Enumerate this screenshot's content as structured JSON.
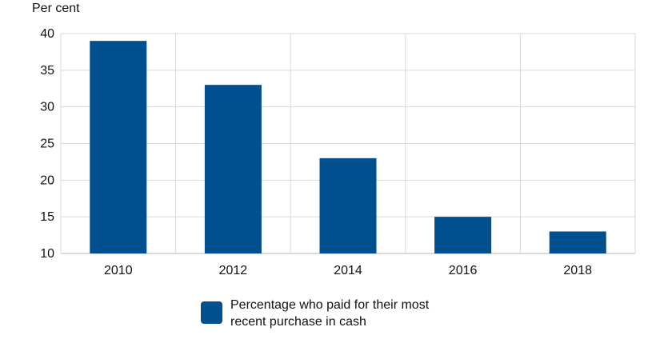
{
  "chart_data": {
    "type": "bar",
    "categories": [
      "2010",
      "2012",
      "2014",
      "2016",
      "2018"
    ],
    "series": [
      {
        "name": "Percentage who paid for their most recent purchase in cash",
        "values": [
          39,
          33,
          23,
          15,
          13
        ],
        "color": "#00508f"
      }
    ],
    "title": "",
    "xlabel": "",
    "ylabel": "Per cent",
    "ylim": [
      10,
      40
    ],
    "yticks": [
      10,
      15,
      20,
      25,
      30,
      35,
      40
    ],
    "grid": true,
    "legend": {
      "placement": "bottom-center",
      "lines": [
        "Percentage who paid for their most",
        "recent purchase in cash"
      ]
    }
  }
}
